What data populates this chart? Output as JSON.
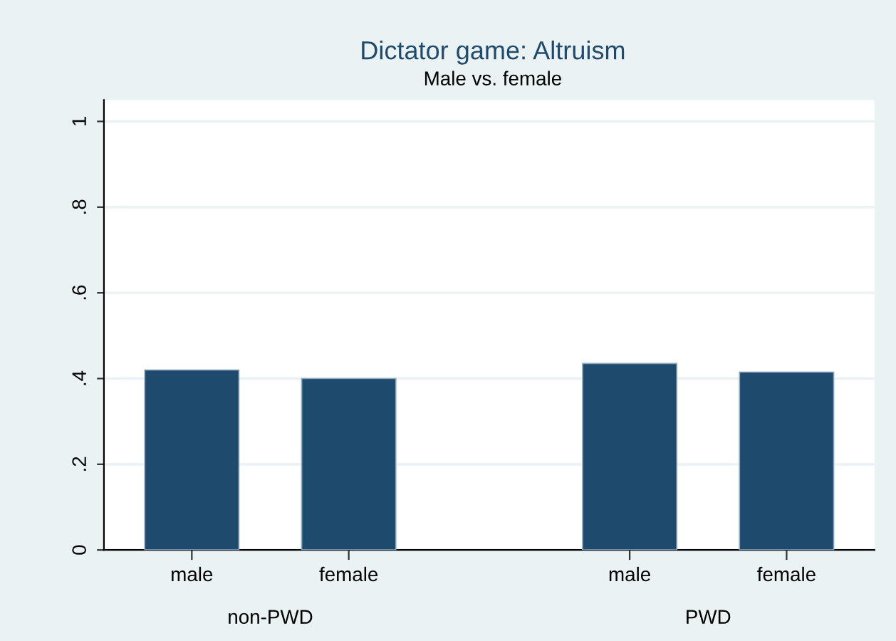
{
  "chart_data": {
    "type": "bar",
    "title": "Dictator game: Altruism",
    "subtitle": "Male vs. female",
    "categories": [
      "male",
      "female",
      null,
      "male",
      "female"
    ],
    "values": [
      0.42,
      0.4,
      null,
      0.435,
      0.415
    ],
    "color": "#1e4a6e",
    "annotations": [
      "non-PWD",
      "PWD"
    ],
    "ylim": [
      0,
      1.05
    ],
    "yticks": [
      0,
      {
        "value": 0.2,
        "label": ".2"
      },
      {
        "value": 0.4,
        "label": ".4"
      },
      {
        "value": 0.6,
        "label": ".6"
      },
      {
        "value": 0.8,
        "label": ".8"
      },
      1
    ],
    "grid": "y"
  }
}
